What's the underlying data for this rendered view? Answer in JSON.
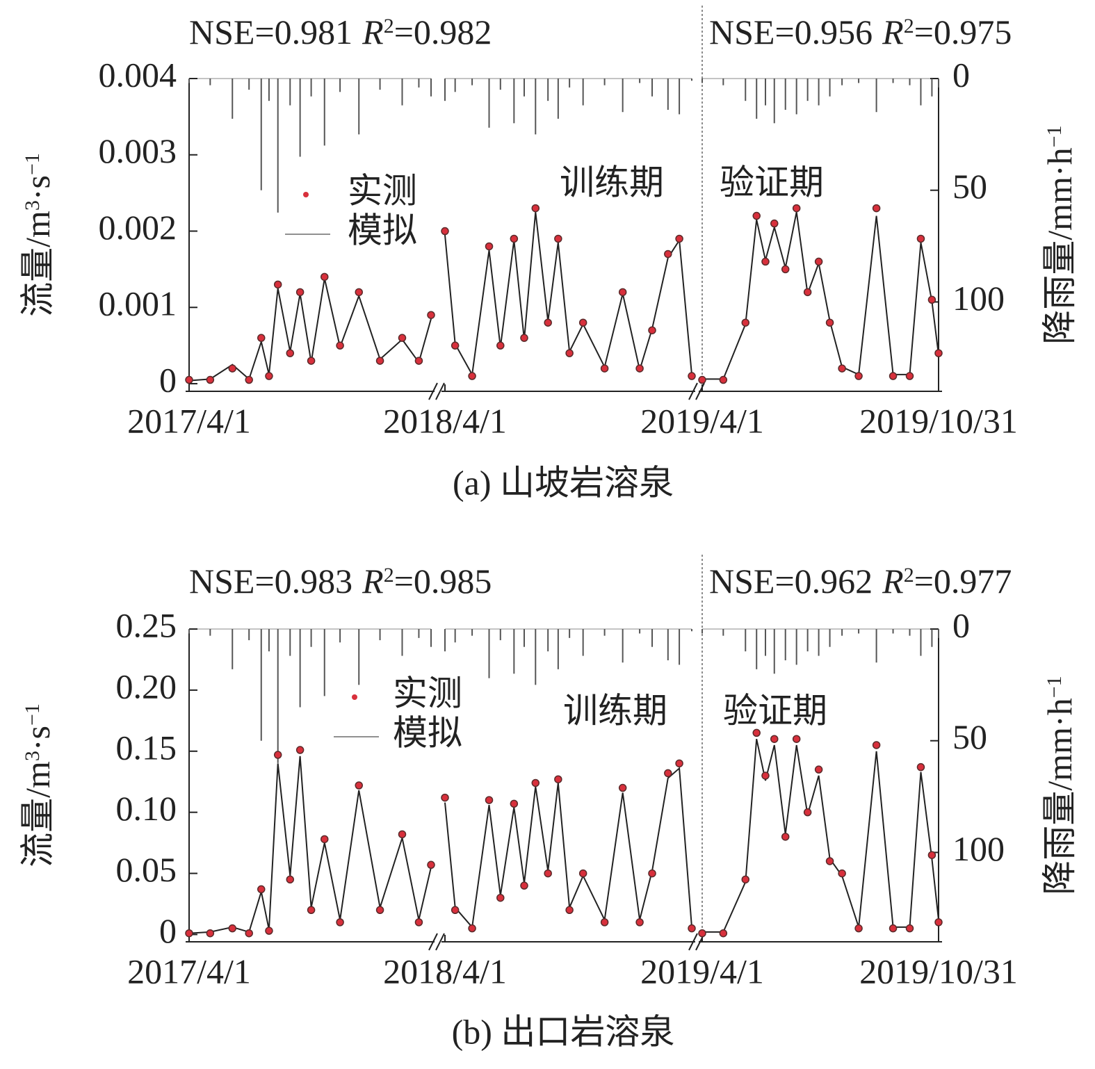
{
  "chart_data": [
    {
      "type": "combo",
      "caption": "(a) 山坡岩溶泉",
      "stats": [
        {
          "nse": "NSE=0.981",
          "r": "R",
          "sup": "2",
          "r2": "=0.982"
        },
        {
          "nse": "NSE=0.956",
          "r": "R",
          "sup": "2",
          "r2": "=0.975"
        }
      ],
      "periods": [
        "训练期",
        "验证期"
      ],
      "ylabel": [
        "流量/m",
        "3",
        "·s",
        "−1"
      ],
      "y2label": [
        "降雨量/mm·h",
        "−1"
      ],
      "xlim": [
        [
          "2017/4/1",
          "2017/11/5"
        ],
        [
          "2018/4/1",
          "2018/11/5"
        ],
        [
          "2019/4/1",
          "2019/10/31"
        ]
      ],
      "xticks": [
        "2017/4/1",
        "2018/4/1",
        "2019/4/1",
        "2019/10/31"
      ],
      "ylim": [
        -0.0001,
        0.004
      ],
      "yticks": [
        0,
        0.001,
        0.002,
        0.003,
        0.004
      ],
      "y2lim": [
        0,
        140
      ],
      "y2ticks": [
        0,
        50,
        100
      ],
      "y2_reversed": true,
      "x": [
        "2017/4/1",
        "2017/4/20",
        "2017/5/10",
        "2017/5/25",
        "2017/6/5",
        "2017/6/12",
        "2017/6/20",
        "2017/7/1",
        "2017/7/10",
        "2017/7/20",
        "2017/8/1",
        "2017/8/15",
        "2017/9/1",
        "2017/9/20",
        "2017/10/10",
        "2017/10/25",
        "2017/11/5",
        "2018/4/1",
        "2018/4/10",
        "2018/4/25",
        "2018/5/10",
        "2018/5/20",
        "2018/6/1",
        "2018/6/10",
        "2018/6/20",
        "2018/7/1",
        "2018/7/10",
        "2018/7/20",
        "2018/8/1",
        "2018/8/20",
        "2018/9/5",
        "2018/9/20",
        "2018/10/1",
        "2018/10/15",
        "2018/10/25",
        "2018/11/5",
        "2019/4/1",
        "2019/4/20",
        "2019/5/10",
        "2019/5/20",
        "2019/5/28",
        "2019/6/5",
        "2019/6/15",
        "2019/6/25",
        "2019/7/5",
        "2019/7/15",
        "2019/7/25",
        "2019/8/5",
        "2019/8/20",
        "2019/9/5",
        "2019/9/20",
        "2019/10/5",
        "2019/10/15",
        "2019/10/25",
        "2019/10/31"
      ],
      "series": [
        {
          "name": "实测",
          "type": "scatter",
          "color": "#d8303c",
          "values": [
            5e-05,
            5e-05,
            0.0002,
            5e-05,
            0.0006,
            0.0001,
            0.0013,
            0.0004,
            0.0012,
            0.0003,
            0.0014,
            0.0005,
            0.0012,
            0.0003,
            0.0006,
            0.0003,
            0.0009,
            0.002,
            0.0005,
            0.0001,
            0.0018,
            0.0005,
            0.0019,
            0.0006,
            0.0023,
            0.0008,
            0.0019,
            0.0004,
            0.0008,
            0.0002,
            0.0012,
            0.0002,
            0.0007,
            0.0017,
            0.0019,
            0.0001,
            5e-05,
            5e-05,
            0.0008,
            0.0022,
            0.0016,
            0.0021,
            0.0015,
            0.0023,
            0.0012,
            0.0016,
            0.0008,
            0.0002,
            0.0001,
            0.0023,
            0.0001,
            0.0001,
            0.0019,
            0.0011,
            0.0004
          ]
        },
        {
          "name": "模拟",
          "type": "line",
          "color": "#222222",
          "values": [
            4e-05,
            6e-05,
            0.00025,
            6e-05,
            0.00055,
            0.00012,
            0.00125,
            0.00042,
            0.00118,
            0.00028,
            0.00138,
            0.00048,
            0.00115,
            0.00032,
            0.00058,
            0.00028,
            0.00085,
            0.00195,
            0.00052,
            0.00012,
            0.00175,
            0.00048,
            0.00188,
            0.00058,
            0.00225,
            0.00082,
            0.00185,
            0.00042,
            0.00078,
            0.00022,
            0.00118,
            0.00018,
            0.00072,
            0.00165,
            0.00188,
            0.00012,
            6e-05,
            6e-05,
            0.00078,
            0.00215,
            0.00162,
            0.00205,
            0.00152,
            0.00225,
            0.00118,
            0.00158,
            0.00082,
            0.00022,
            0.00012,
            0.0022,
            0.00012,
            0.00012,
            0.00185,
            0.00108,
            0.00038
          ]
        },
        {
          "type": "bar",
          "axis": "y2",
          "color": "#555555",
          "values": [
            2,
            3,
            18,
            5,
            50,
            10,
            60,
            12,
            35,
            8,
            30,
            6,
            25,
            5,
            12,
            4,
            8,
            10,
            6,
            3,
            22,
            5,
            20,
            8,
            25,
            10,
            18,
            4,
            12,
            3,
            15,
            2,
            8,
            14,
            16,
            1,
            2,
            3,
            10,
            18,
            12,
            20,
            14,
            16,
            10,
            12,
            8,
            3,
            2,
            15,
            2,
            3,
            12,
            8,
            4
          ]
        }
      ]
    },
    {
      "type": "combo",
      "caption": "(b) 出口岩溶泉",
      "stats": [
        {
          "nse": "NSE=0.983",
          "r": "R",
          "sup": "2",
          "r2": "=0.985"
        },
        {
          "nse": "NSE=0.962",
          "r": "R",
          "sup": "2",
          "r2": "=0.977"
        }
      ],
      "periods": [
        "训练期",
        "验证期"
      ],
      "ylabel": [
        "流量/m",
        "3",
        "·s",
        "−1"
      ],
      "y2label": [
        "降雨量/mm·h",
        "−1"
      ],
      "xlim": [
        [
          "2017/4/1",
          "2017/11/5"
        ],
        [
          "2018/4/1",
          "2018/11/5"
        ],
        [
          "2019/4/1",
          "2019/10/31"
        ]
      ],
      "xticks": [
        "2017/4/1",
        "2018/4/1",
        "2019/4/1",
        "2019/10/31"
      ],
      "ylim": [
        -0.006,
        0.25
      ],
      "yticks": [
        0,
        {
          "value": 0.05,
          "label": "0.05"
        },
        {
          "value": 0.1,
          "label": "0.10"
        },
        {
          "value": 0.15,
          "label": "0.15"
        },
        {
          "value": 0.2,
          "label": "0.20"
        },
        {
          "value": 0.25,
          "label": "0.25"
        }
      ],
      "y2lim": [
        0,
        140
      ],
      "y2ticks": [
        0,
        50,
        100
      ],
      "y2_reversed": true,
      "x": [
        "2017/4/1",
        "2017/4/20",
        "2017/5/10",
        "2017/5/25",
        "2017/6/5",
        "2017/6/12",
        "2017/6/20",
        "2017/7/1",
        "2017/7/10",
        "2017/7/20",
        "2017/8/1",
        "2017/8/15",
        "2017/9/1",
        "2017/9/20",
        "2017/10/10",
        "2017/10/25",
        "2017/11/5",
        "2018/4/1",
        "2018/4/10",
        "2018/4/25",
        "2018/5/10",
        "2018/5/20",
        "2018/6/1",
        "2018/6/10",
        "2018/6/20",
        "2018/7/1",
        "2018/7/10",
        "2018/7/20",
        "2018/8/1",
        "2018/8/20",
        "2018/9/5",
        "2018/9/20",
        "2018/10/1",
        "2018/10/15",
        "2018/10/25",
        "2018/11/5",
        "2019/4/1",
        "2019/4/20",
        "2019/5/10",
        "2019/5/20",
        "2019/5/28",
        "2019/6/5",
        "2019/6/15",
        "2019/6/25",
        "2019/7/5",
        "2019/7/15",
        "2019/7/25",
        "2019/8/5",
        "2019/8/20",
        "2019/9/5",
        "2019/9/20",
        "2019/10/5",
        "2019/10/15",
        "2019/10/25",
        "2019/10/31"
      ],
      "series": [
        {
          "name": "实测",
          "type": "scatter",
          "color": "#d8303c",
          "values": [
            0.001,
            0.001,
            0.005,
            0.001,
            0.037,
            0.003,
            0.147,
            0.045,
            0.151,
            0.02,
            0.078,
            0.01,
            0.122,
            0.02,
            0.082,
            0.01,
            0.057,
            0.112,
            0.02,
            0.005,
            0.11,
            0.03,
            0.107,
            0.04,
            0.124,
            0.05,
            0.127,
            0.02,
            0.05,
            0.01,
            0.12,
            0.01,
            0.05,
            0.132,
            0.14,
            0.005,
            0.001,
            0.001,
            0.045,
            0.165,
            0.13,
            0.16,
            0.08,
            0.16,
            0.1,
            0.135,
            0.06,
            0.05,
            0.005,
            0.155,
            0.005,
            0.005,
            0.137,
            0.065,
            0.01
          ]
        },
        {
          "name": "模拟",
          "type": "line",
          "color": "#222222",
          "values": [
            0.001,
            0.002,
            0.006,
            0.002,
            0.035,
            0.004,
            0.14,
            0.048,
            0.146,
            0.022,
            0.075,
            0.012,
            0.118,
            0.022,
            0.079,
            0.012,
            0.055,
            0.108,
            0.022,
            0.006,
            0.106,
            0.032,
            0.104,
            0.042,
            0.121,
            0.052,
            0.124,
            0.022,
            0.048,
            0.012,
            0.116,
            0.012,
            0.052,
            0.128,
            0.136,
            0.006,
            0.002,
            0.002,
            0.043,
            0.16,
            0.126,
            0.155,
            0.082,
            0.155,
            0.098,
            0.13,
            0.062,
            0.048,
            0.006,
            0.15,
            0.006,
            0.006,
            0.133,
            0.062,
            0.012
          ]
        },
        {
          "type": "bar",
          "axis": "y2",
          "color": "#555555",
          "values": [
            2,
            3,
            18,
            5,
            50,
            10,
            60,
            12,
            35,
            8,
            30,
            6,
            25,
            5,
            12,
            4,
            8,
            10,
            6,
            3,
            22,
            5,
            20,
            8,
            25,
            10,
            18,
            4,
            12,
            3,
            15,
            2,
            8,
            14,
            16,
            1,
            2,
            3,
            10,
            18,
            12,
            20,
            14,
            16,
            10,
            12,
            8,
            3,
            2,
            15,
            2,
            3,
            12,
            8,
            4
          ]
        }
      ]
    }
  ]
}
